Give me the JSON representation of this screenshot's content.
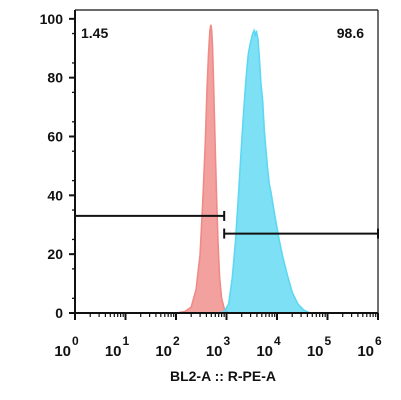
{
  "chart_data": {
    "type": "area",
    "xlabel": "BL2-A :: R-PE-A",
    "ylabel": "",
    "x_scale": "log",
    "xlim": [
      1,
      1000000
    ],
    "ylim": [
      0,
      103
    ],
    "y_ticks": [
      "0",
      "20",
      "40",
      "60",
      "80",
      "100"
    ],
    "x_ticks": [
      {
        "base": "10",
        "exp": "0"
      },
      {
        "base": "10",
        "exp": "1"
      },
      {
        "base": "10",
        "exp": "2"
      },
      {
        "base": "10",
        "exp": "3"
      },
      {
        "base": "10",
        "exp": "4"
      },
      {
        "base": "10",
        "exp": "5"
      },
      {
        "base": "10",
        "exp": "6"
      }
    ],
    "series": [
      {
        "color": "#f08a87",
        "points": [
          [
            100,
            0
          ],
          [
            150,
            0.5
          ],
          [
            200,
            2
          ],
          [
            250,
            8
          ],
          [
            300,
            20
          ],
          [
            340,
            38
          ],
          [
            380,
            58
          ],
          [
            410,
            75
          ],
          [
            440,
            88
          ],
          [
            470,
            96
          ],
          [
            490,
            98
          ],
          [
            510,
            96
          ],
          [
            530,
            90
          ],
          [
            560,
            75
          ],
          [
            600,
            55
          ],
          [
            640,
            38
          ],
          [
            680,
            24
          ],
          [
            730,
            12
          ],
          [
            800,
            5
          ],
          [
            900,
            1.5
          ],
          [
            1100,
            0
          ]
        ]
      },
      {
        "color": "#5ed8f2",
        "points": [
          [
            700,
            0
          ],
          [
            900,
            0.5
          ],
          [
            1100,
            3
          ],
          [
            1300,
            12
          ],
          [
            1500,
            24
          ],
          [
            1700,
            38
          ],
          [
            1900,
            52
          ],
          [
            2100,
            64
          ],
          [
            2300,
            74
          ],
          [
            2500,
            82
          ],
          [
            2700,
            88
          ],
          [
            2900,
            91
          ],
          [
            3100,
            93
          ],
          [
            3300,
            95
          ],
          [
            3500,
            96
          ],
          [
            3700,
            94
          ],
          [
            3900,
            96
          ],
          [
            4200,
            93
          ],
          [
            4500,
            86
          ],
          [
            4800,
            78
          ],
          [
            5200,
            72
          ],
          [
            5600,
            62
          ],
          [
            6000,
            56
          ],
          [
            6500,
            49
          ],
          [
            7000,
            44
          ],
          [
            7600,
            41
          ],
          [
            8500,
            36
          ],
          [
            9500,
            31
          ],
          [
            11000,
            25
          ],
          [
            13000,
            19
          ],
          [
            16000,
            13
          ],
          [
            20000,
            7
          ],
          [
            26000,
            3
          ],
          [
            34000,
            1
          ],
          [
            45000,
            0
          ]
        ]
      }
    ],
    "gates": [
      {
        "label": "1.45",
        "x_start": 1,
        "x_end": 900,
        "y": 33
      },
      {
        "label": "98.6",
        "x_start": 900,
        "x_end": 1000000,
        "y": 27
      }
    ]
  }
}
